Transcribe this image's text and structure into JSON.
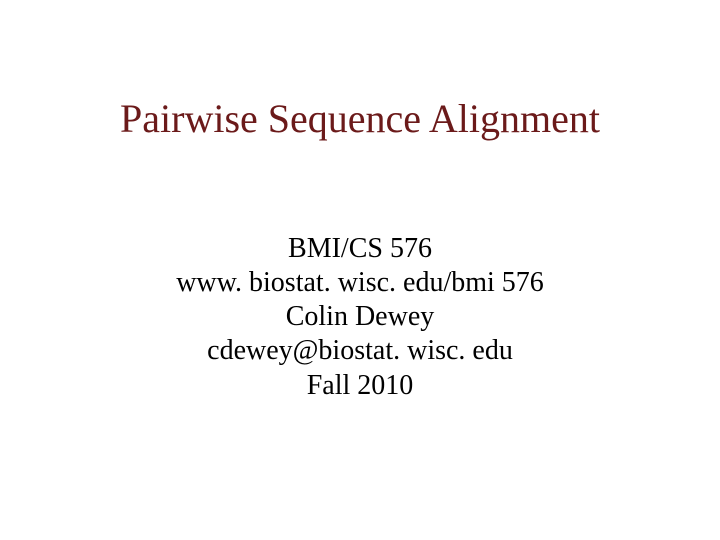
{
  "slide": {
    "title": {
      "text": "Pairwise Sequence Alignment",
      "fontsize": 40,
      "color": "#6b1a1a"
    },
    "content": {
      "lines": [
        "BMI/CS 576",
        "www. biostat. wisc. edu/bmi 576",
        "Colin Dewey",
        "cdewey@biostat. wisc. edu",
        "Fall 2010"
      ],
      "fontsize": 28,
      "color": "#000000",
      "line_height": 1.22
    },
    "background_color": "#ffffff"
  }
}
